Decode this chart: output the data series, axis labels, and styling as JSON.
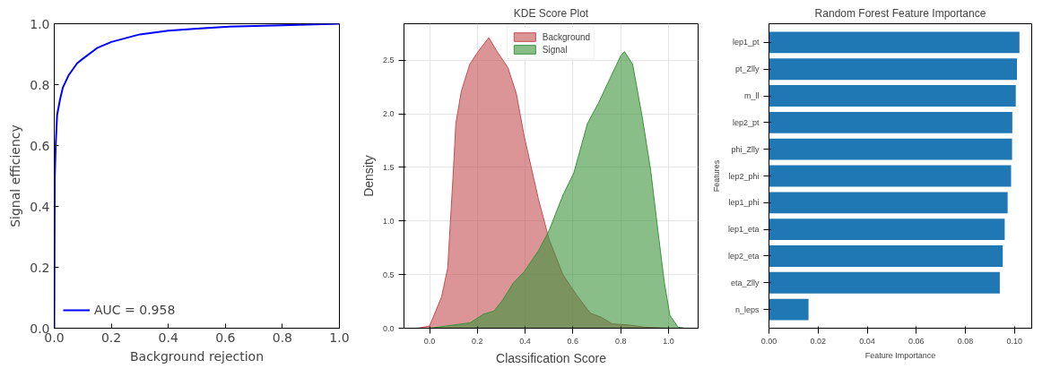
{
  "chart_data": [
    {
      "type": "line",
      "xlabel": "Background rejection",
      "ylabel": "Signal efficiency",
      "xlim": [
        0,
        1
      ],
      "ylim": [
        0,
        1
      ],
      "xticks": [
        {
          "value": 0,
          "label": "0.0"
        },
        0.2,
        0.4,
        0.6,
        0.8,
        {
          "value": 1,
          "label": "1.0"
        }
      ],
      "yticks": [
        {
          "value": 0,
          "label": "0.0"
        },
        0.2,
        0.4,
        0.6,
        0.8,
        {
          "value": 1,
          "label": "1.0"
        }
      ],
      "grid": false,
      "legend": "bottom left",
      "x": [
        0,
        0.002,
        0.005,
        0.01,
        0.02,
        0.03,
        0.05,
        0.08,
        0.1,
        0.15,
        0.2,
        0.3,
        0.4,
        0.5,
        0.6,
        0.8,
        1
      ],
      "series": [
        {
          "name": "AUC = 0.958",
          "color": "#0000ff",
          "values": [
            0,
            0.5,
            0.6,
            0.7,
            0.75,
            0.79,
            0.83,
            0.87,
            0.885,
            0.92,
            0.94,
            0.965,
            0.977,
            0.984,
            0.99,
            0.995,
            1
          ]
        }
      ]
    },
    {
      "type": "area",
      "title": "KDE Score Plot",
      "xlabel": "Classification Score",
      "ylabel": "Density",
      "xlim": [
        -0.107,
        1.124
      ],
      "ylim": [
        0,
        2.84
      ],
      "xticks": [
        {
          "value": 0,
          "label": "0.0"
        },
        0.2,
        0.4,
        0.6,
        0.8,
        {
          "value": 1,
          "label": "1.0"
        }
      ],
      "yticks": [
        {
          "value": 0,
          "label": "0.0"
        },
        0.5,
        {
          "value": 1,
          "label": "1.0"
        },
        1.5,
        {
          "value": 2,
          "label": "2.0"
        },
        2.5
      ],
      "grid": true,
      "legend": "top",
      "series": [
        {
          "name": "Background",
          "color": "#c44e52",
          "x": [
            -0.05,
            0.0,
            0.05,
            0.076,
            0.1,
            0.11,
            0.133,
            0.168,
            0.2,
            0.248,
            0.28,
            0.328,
            0.363,
            0.397,
            0.455,
            0.5,
            0.558,
            0.615,
            0.673,
            0.72,
            0.765,
            0.834,
            0.9,
            1.0
          ],
          "values": [
            0,
            0.02,
            0.29,
            0.56,
            1.48,
            1.91,
            2.21,
            2.46,
            2.57,
            2.71,
            2.59,
            2.43,
            2.19,
            1.78,
            1.21,
            0.83,
            0.5,
            0.31,
            0.14,
            0.1,
            0.04,
            0.03,
            0.01,
            0
          ]
        },
        {
          "name": "Signal",
          "color": "#3a923a",
          "x": [
            -0.05,
            0.0,
            0.1,
            0.17,
            0.225,
            0.27,
            0.305,
            0.35,
            0.397,
            0.455,
            0.5,
            0.558,
            0.604,
            0.661,
            0.707,
            0.753,
            0.8,
            0.816,
            0.85,
            0.89,
            0.925,
            0.96,
            0.983,
            1.006,
            1.04,
            1.069
          ],
          "values": [
            0,
            0,
            0.03,
            0.05,
            0.13,
            0.16,
            0.26,
            0.42,
            0.53,
            0.72,
            0.91,
            1.24,
            1.45,
            1.91,
            2.1,
            2.32,
            2.54,
            2.58,
            2.46,
            1.97,
            1.48,
            0.83,
            0.42,
            0.12,
            0.01,
            0
          ]
        }
      ]
    },
    {
      "type": "bar",
      "orientation": "horizontal",
      "title": "Random Forest Feature Importance",
      "xlabel": "Feature Importance",
      "ylabel": "Features",
      "xlim": [
        0,
        0.107
      ],
      "xticks": [
        {
          "value": 0,
          "label": "0.00"
        },
        0.02,
        0.04,
        0.06,
        0.08,
        {
          "value": 0.1,
          "label": "0.10"
        }
      ],
      "grid": false,
      "categories": [
        "lep1_pt",
        "pt_Zlly",
        "m_ll",
        "lep2_pt",
        "phi_Zlly",
        "lep2_phi",
        "lep1_phi",
        "lep1_eta",
        "lep2_eta",
        "eta_Zlly",
        "n_leps"
      ],
      "series": [
        {
          "color": "#1f77b4",
          "values": [
            0.102,
            0.101,
            0.1005,
            0.0991,
            0.099,
            0.0986,
            0.0972,
            0.096,
            0.0952,
            0.094,
            0.0161
          ]
        }
      ]
    }
  ]
}
